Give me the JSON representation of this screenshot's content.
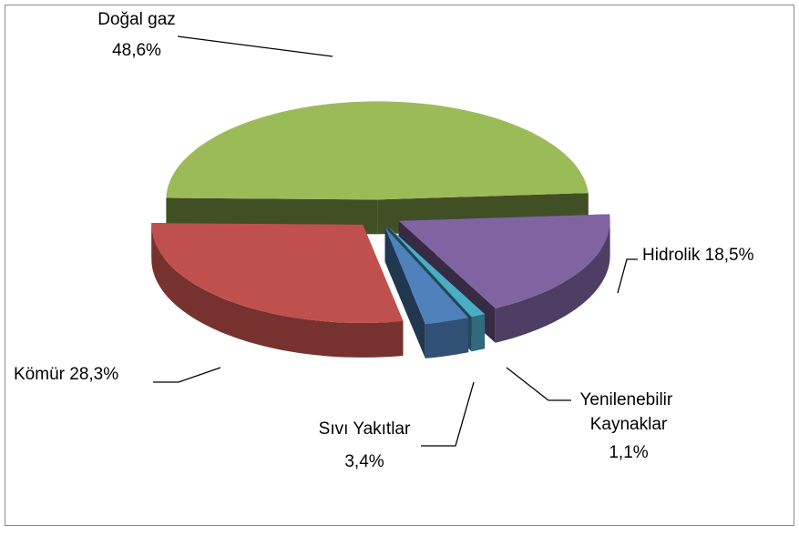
{
  "chart_data": {
    "type": "pie",
    "categories": [
      "Doğal gaz",
      "Hidrolik",
      "Yenilenebilir Kaynaklar",
      "Sıvı Yakıtlar",
      "Kömür"
    ],
    "values": [
      48.6,
      18.5,
      1.1,
      3.4,
      28.3
    ],
    "value_labels": [
      "48,6%",
      "18,5%",
      "1,1%",
      "3,4%",
      "28,3%"
    ],
    "colors": [
      "#9bbb59",
      "#8064a2",
      "#4bacc6",
      "#4f81bd",
      "#c0504d"
    ]
  }
}
